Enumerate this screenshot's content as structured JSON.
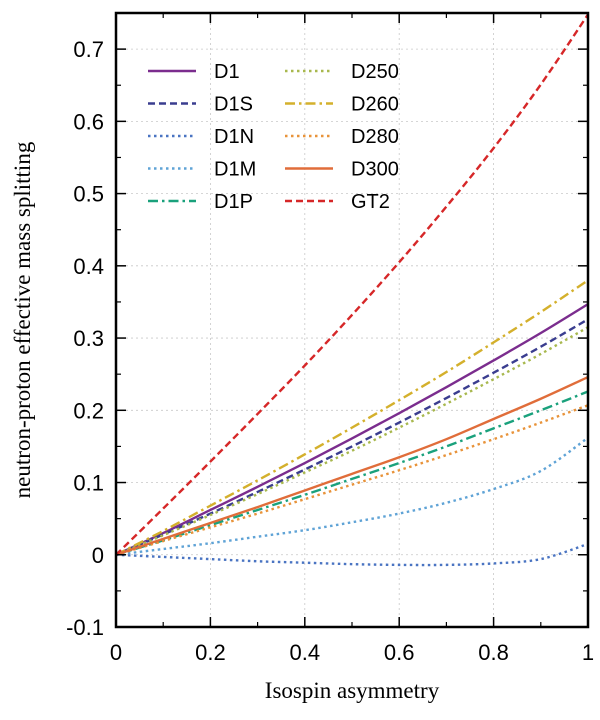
{
  "chart_data": {
    "type": "line",
    "title": "",
    "xlabel": "Isospin asymmetry",
    "ylabel": "neutron-proton effective mass splitting",
    "xlim": [
      0,
      1
    ],
    "ylim": [
      -0.1,
      0.75
    ],
    "grid": true,
    "legend_position": "top-left",
    "x_ticks": [
      0,
      0.2,
      0.4,
      0.6,
      0.8,
      1
    ],
    "x_tick_labels": [
      "0",
      "0.2",
      "0.4",
      "0.6",
      "0.8",
      "1"
    ],
    "y_ticks": [
      -0.1,
      0,
      0.1,
      0.2,
      0.3,
      0.4,
      0.5,
      0.6,
      0.7
    ],
    "y_tick_labels": [
      "-0.1",
      "0",
      "0.1",
      "0.2",
      "0.3",
      "0.4",
      "0.5",
      "0.6",
      "0.7"
    ],
    "x": [
      0,
      0.1,
      0.2,
      0.3,
      0.4,
      0.5,
      0.6,
      0.7,
      0.8,
      0.9,
      1.0
    ],
    "series": [
      {
        "name": "D1",
        "color": "#7b2d8e",
        "dash": "solid",
        "values": [
          0,
          0.03,
          0.062,
          0.094,
          0.127,
          0.161,
          0.196,
          0.232,
          0.269,
          0.307,
          0.347
        ]
      },
      {
        "name": "D1S",
        "color": "#3a3d8f",
        "dash": "dashed",
        "values": [
          0,
          0.028,
          0.057,
          0.087,
          0.118,
          0.15,
          0.183,
          0.217,
          0.252,
          0.288,
          0.326
        ]
      },
      {
        "name": "D1N",
        "color": "#4a74c2",
        "dash": "dotted",
        "values": [
          0,
          -0.003,
          -0.006,
          -0.009,
          -0.011,
          -0.013,
          -0.014,
          -0.014,
          -0.012,
          -0.006,
          0.015
        ]
      },
      {
        "name": "D1M",
        "color": "#5fa3d6",
        "dash": "dotted",
        "values": [
          0,
          0.008,
          0.016,
          0.025,
          0.034,
          0.045,
          0.057,
          0.072,
          0.091,
          0.116,
          0.162
        ]
      },
      {
        "name": "D1P",
        "color": "#1aa17c",
        "dash": "dashdot",
        "values": [
          0,
          0.02,
          0.041,
          0.062,
          0.083,
          0.105,
          0.127,
          0.15,
          0.175,
          0.2,
          0.226
        ]
      },
      {
        "name": "D250",
        "color": "#a8b84e",
        "dash": "dotted",
        "values": [
          0,
          0.027,
          0.055,
          0.084,
          0.114,
          0.144,
          0.176,
          0.209,
          0.243,
          0.278,
          0.315
        ]
      },
      {
        "name": "D260",
        "color": "#d4b02c",
        "dash": "dashdot",
        "values": [
          0,
          0.033,
          0.068,
          0.103,
          0.139,
          0.176,
          0.214,
          0.253,
          0.294,
          0.336,
          0.38
        ]
      },
      {
        "name": "D280",
        "color": "#e8933a",
        "dash": "dotted",
        "values": [
          0,
          0.019,
          0.038,
          0.057,
          0.077,
          0.097,
          0.117,
          0.138,
          0.16,
          0.183,
          0.207
        ]
      },
      {
        "name": "D300",
        "color": "#e06d3a",
        "dash": "solid",
        "values": [
          0,
          0.022,
          0.044,
          0.066,
          0.089,
          0.112,
          0.135,
          0.16,
          0.188,
          0.216,
          0.246
        ]
      },
      {
        "name": "GT2",
        "color": "#d62728",
        "dash": "dashed",
        "values": [
          0,
          0.064,
          0.129,
          0.195,
          0.262,
          0.332,
          0.405,
          0.482,
          0.563,
          0.651,
          0.748
        ]
      }
    ]
  }
}
